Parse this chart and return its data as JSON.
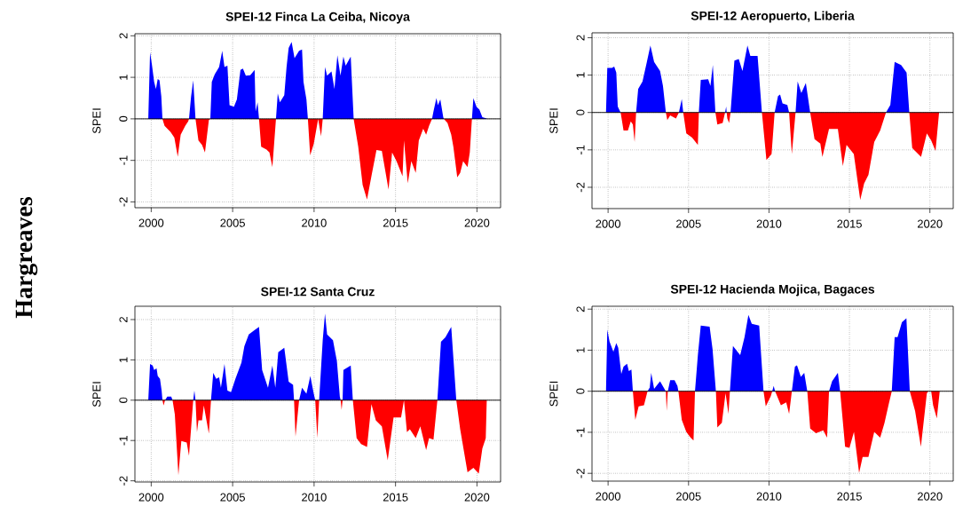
{
  "chart_data": [
    {
      "type": "area",
      "title": "SPEI-12 Finca La Ceiba, Nicoya",
      "ylabel": "SPEI",
      "xlim": [
        1999.0,
        2021.45
      ],
      "ylim": [
        -2.14,
        2.05
      ],
      "xticks": [
        2000,
        2005,
        2010,
        2015,
        2020
      ],
      "yticks": [
        -2,
        -1,
        0,
        1,
        2
      ],
      "grid": true,
      "ref_lines": [
        {
          "axis": "y",
          "value": 0,
          "color": "#000000"
        }
      ],
      "annotations": [
        "Hargreaves"
      ],
      "series": [
        {
          "color": "#0000ff",
          "x": [
            1999.82,
            1999.93,
            2000.04,
            2000.18,
            2000.29,
            2000.4,
            2000.51,
            2000.62,
            2000.69,
            2002.32,
            2002.45,
            2002.58,
            2002.72,
            2003.63,
            2003.72,
            2003.9,
            2004.17,
            2004.36,
            2004.5,
            2004.68,
            2004.81,
            2005.08,
            2005.26,
            2005.48,
            2005.63,
            2005.81,
            2006.08,
            2006.35,
            2006.41,
            2006.53,
            2006.62,
            2007.66,
            2007.77,
            2007.9,
            2008.17,
            2008.31,
            2008.44,
            2008.62,
            2008.8,
            2009.08,
            2009.26,
            2009.35,
            2009.53,
            2009.62,
            2010.25,
            2010.53,
            2010.67,
            2010.8,
            2011.07,
            2011.25,
            2011.43,
            2011.62,
            2011.8,
            2011.94,
            2012.25,
            2012.43,
            2017.24,
            2017.33,
            2017.51,
            2017.6,
            2017.75,
            2017.93,
            2017.97,
            2019.69,
            2019.78,
            2019.97,
            2020.15,
            2020.33,
            2020.6
          ],
          "values": [
            0,
            1.6,
            1.32,
            0.89,
            0.72,
            0.96,
            0.93,
            0.54,
            0,
            0,
            0.54,
            0.93,
            0,
            0,
            0.89,
            1.07,
            1.25,
            1.64,
            1.25,
            1.28,
            0.33,
            0.29,
            0.47,
            1.18,
            1.21,
            1.04,
            1.05,
            1.18,
            0.18,
            0.4,
            0,
            0,
            0.61,
            0.4,
            0.57,
            1.25,
            1.71,
            1.85,
            1.46,
            1.64,
            1.67,
            0.89,
            0.47,
            0,
            0,
            0,
            1.25,
            1.04,
            1.14,
            0.72,
            1.53,
            1.04,
            1.5,
            1.28,
            1.5,
            0,
            0,
            0.18,
            0.5,
            0.33,
            0.47,
            0.04,
            0,
            0,
            0.5,
            0.29,
            0.22,
            0.04,
            0.01
          ]
        },
        {
          "color": "#ff0000",
          "x": [
            2000.69,
            2000.82,
            2001.18,
            2001.42,
            2001.63,
            2001.81,
            2002.09,
            2002.27,
            2002.32,
            2002.72,
            2002.9,
            2003.12,
            2003.3,
            2003.54,
            2003.63,
            2006.62,
            2006.75,
            2007.08,
            2007.26,
            2007.44,
            2007.66,
            2009.62,
            2009.76,
            2009.98,
            2010.25,
            2010.43,
            2010.53,
            2012.43,
            2012.71,
            2012.98,
            2013.25,
            2013.52,
            2013.83,
            2014.16,
            2014.57,
            2014.79,
            2015.06,
            2015.43,
            2015.52,
            2015.75,
            2015.97,
            2016.24,
            2016.43,
            2016.7,
            2016.88,
            2017.06,
            2017.24,
            2017.97,
            2018.19,
            2018.42,
            2018.55,
            2018.79,
            2018.97,
            2019.15,
            2019.42,
            2019.56,
            2019.69
          ],
          "values": [
            0,
            -0.17,
            -0.31,
            -0.45,
            -0.91,
            -0.38,
            -0.17,
            -0.06,
            0,
            0,
            -0.52,
            -0.63,
            -0.81,
            -0.03,
            0,
            0,
            -0.67,
            -0.74,
            -0.81,
            -1.16,
            0,
            0,
            -0.88,
            -0.6,
            0,
            -0.42,
            0,
            0,
            -0.67,
            -1.59,
            -1.94,
            -1.38,
            -0.75,
            -0.77,
            -1.7,
            -0.81,
            -1.02,
            -1.38,
            -0.52,
            -1.55,
            -1.02,
            -1.3,
            -0.52,
            -0.24,
            -0.38,
            -0.17,
            0,
            0,
            -0.1,
            -0.38,
            -0.67,
            -1.41,
            -1.3,
            -1.02,
            -1.16,
            -0.81,
            0
          ]
        }
      ]
    },
    {
      "type": "area",
      "title": "SPEI-12 Aeropuerto, Liberia",
      "ylabel": "SPEI",
      "xlim": [
        1999.0,
        2021.45
      ],
      "ylim": [
        -2.57,
        2.13
      ],
      "xticks": [
        2000,
        2005,
        2010,
        2015,
        2020
      ],
      "yticks": [
        -2,
        -1,
        0,
        1,
        2
      ],
      "grid": true,
      "ref_lines": [
        {
          "axis": "y",
          "value": 0,
          "color": "#000000"
        }
      ],
      "series": [
        {
          "color": "#0000ff",
          "x": [
            1999.87,
            1999.95,
            2000.24,
            2000.38,
            2000.51,
            2000.6,
            2000.78,
            2001.74,
            2001.87,
            2002.14,
            2002.41,
            2002.63,
            2002.86,
            2003.23,
            2003.41,
            2003.59,
            2004.4,
            2004.58,
            2004.67,
            2005.64,
            2005.76,
            2006.22,
            2006.36,
            2006.51,
            2006.67,
            2007.27,
            2007.34,
            2007.37,
            2007.61,
            2007.85,
            2008.12,
            2008.35,
            2008.66,
            2008.84,
            2009.29,
            2009.56,
            2010.35,
            2010.56,
            2010.69,
            2010.84,
            2011.14,
            2011.25,
            2011.65,
            2011.78,
            2012.01,
            2012.29,
            2012.56,
            2017.27,
            2017.54,
            2017.81,
            2018.21,
            2018.55,
            2018.72
          ],
          "values": [
            0,
            1.19,
            1.19,
            1.23,
            1.07,
            0.16,
            0,
            0,
            0.63,
            0.83,
            1.35,
            1.79,
            1.35,
            1.11,
            0.71,
            0,
            0,
            0.36,
            0,
            0,
            0.87,
            0.89,
            0.71,
            1.27,
            0,
            0,
            0.16,
            0,
            0,
            1.39,
            1.43,
            1.11,
            1.79,
            1.51,
            1.51,
            0,
            0,
            0.44,
            0.48,
            0.24,
            0.2,
            0,
            0,
            0.83,
            0.52,
            0.79,
            0,
            0,
            0.2,
            1.35,
            1.27,
            1.07,
            0
          ]
        },
        {
          "color": "#ff0000",
          "x": [
            2000.78,
            2000.96,
            2001.23,
            2001.41,
            2001.54,
            2001.65,
            2001.74,
            2003.59,
            2003.68,
            2003.86,
            2004.22,
            2004.4,
            2004.67,
            2004.86,
            2005.22,
            2005.58,
            2005.64,
            2006.67,
            2006.79,
            2007.12,
            2007.27,
            2007.37,
            2007.41,
            2007.52,
            2007.61,
            2009.56,
            2009.84,
            2010.16,
            2010.35,
            2011.25,
            2011.42,
            2011.65,
            2012.56,
            2012.83,
            2013.19,
            2013.32,
            2013.73,
            2014.28,
            2014.59,
            2014.82,
            2015.27,
            2015.67,
            2015.91,
            2016.18,
            2016.54,
            2016.91,
            2017.27,
            2018.72,
            2018.9,
            2019.45,
            2019.81,
            2020.08,
            2020.35,
            2020.57
          ],
          "values": [
            0,
            -0.48,
            -0.48,
            -0.24,
            -0.32,
            -0.79,
            0,
            0,
            -0.2,
            -0.08,
            -0.16,
            0,
            0,
            -0.56,
            -0.67,
            -0.87,
            0,
            0,
            -0.32,
            -0.28,
            0,
            0,
            -0.16,
            -0.28,
            0,
            0,
            -1.27,
            -1.11,
            0,
            0,
            -1.11,
            0,
            0,
            -0.71,
            -0.83,
            -1.19,
            -0.44,
            -0.44,
            -1.43,
            -0.87,
            -1.11,
            -2.34,
            -1.9,
            -1.67,
            -0.79,
            -0.48,
            0,
            0,
            -0.95,
            -1.19,
            -0.56,
            -0.75,
            -1.03,
            0
          ]
        }
      ]
    },
    {
      "type": "area",
      "title": "SPEI-12 Santa Cruz",
      "ylabel": "SPEI",
      "xlim": [
        1999.0,
        2021.45
      ],
      "ylim": [
        -2.03,
        2.33
      ],
      "xticks": [
        2000,
        2005,
        2010,
        2015,
        2020
      ],
      "yticks": [
        -2,
        -1,
        0,
        1,
        2
      ],
      "grid": true,
      "ref_lines": [
        {
          "axis": "y",
          "value": 0,
          "color": "#000000"
        }
      ],
      "series": [
        {
          "color": "#0000ff",
          "x": [
            1999.82,
            1999.93,
            2000.09,
            2000.18,
            2000.33,
            2000.4,
            2000.54,
            2000.64,
            2000.69,
            2000.85,
            2000.99,
            2001.23,
            2001.31,
            2002.58,
            2002.65,
            2002.72,
            2003.67,
            2003.81,
            2003.99,
            2004.17,
            2004.28,
            2004.5,
            2004.68,
            2004.9,
            2005.17,
            2005.54,
            2005.72,
            2005.99,
            2006.35,
            2006.62,
            2006.81,
            2007.17,
            2007.44,
            2007.62,
            2007.8,
            2008.17,
            2008.44,
            2008.71,
            2008.77,
            2009.08,
            2009.26,
            2009.53,
            2009.77,
            2009.98,
            2010.07,
            2010.31,
            2010.53,
            2010.67,
            2010.8,
            2011.16,
            2011.4,
            2011.58,
            2011.63,
            2011.75,
            2011.8,
            2012.25,
            2012.38,
            2017.57,
            2017.79,
            2018.06,
            2018.42,
            2018.73
          ],
          "values": [
            0,
            0.9,
            0.86,
            0.75,
            0.79,
            0.6,
            0.53,
            0.24,
            0,
            0,
            0.09,
            0.09,
            0,
            0,
            0.24,
            0,
            0,
            0.68,
            0.53,
            0.57,
            0.31,
            0.9,
            0.24,
            0.2,
            0.53,
            0.93,
            1.34,
            1.63,
            1.74,
            1.82,
            0.75,
            0.31,
            0.86,
            0.31,
            1.19,
            1.3,
            0.46,
            0.38,
            0,
            0,
            0.31,
            0.16,
            0.6,
            0.16,
            0,
            0,
            1.49,
            2.15,
            1.63,
            1.49,
            0.97,
            0.09,
            0,
            0,
            0.75,
            0.86,
            0,
            0,
            1.45,
            1.56,
            1.82,
            0
          ]
        },
        {
          "color": "#ff0000",
          "x": [
            2000.69,
            2000.76,
            2000.85,
            2001.31,
            2001.45,
            2001.67,
            2001.85,
            2002.18,
            2002.32,
            2002.58,
            2002.72,
            2002.81,
            2002.9,
            2003.12,
            2003.23,
            2003.54,
            2003.67,
            2008.77,
            2008.86,
            2009.08,
            2010.07,
            2010.2,
            2010.31,
            2011.63,
            2011.69,
            2011.75,
            2012.38,
            2012.61,
            2012.89,
            2013.25,
            2013.52,
            2013.79,
            2014.16,
            2014.52,
            2014.88,
            2015.34,
            2015.52,
            2015.7,
            2015.88,
            2016.24,
            2016.52,
            2016.88,
            2017.06,
            2017.33,
            2017.57,
            2018.73,
            2018.97,
            2019.42,
            2019.78,
            2020.11,
            2020.33,
            2020.54,
            2020.6
          ],
          "values": [
            0,
            -0.13,
            0,
            0,
            -0.35,
            -1.86,
            -1.01,
            -1.05,
            -1.38,
            0,
            0,
            -0.79,
            -0.5,
            -0.5,
            -0.13,
            -0.83,
            0,
            0,
            -0.9,
            0,
            0,
            -0.94,
            0,
            0,
            -0.24,
            0,
            0,
            -0.94,
            -1.09,
            -1.16,
            -0.1,
            -0.5,
            -0.65,
            -1.49,
            -0.43,
            -0.43,
            0,
            -0.79,
            -0.72,
            -0.94,
            -0.65,
            -1.24,
            -0.94,
            -0.98,
            0,
            0,
            -0.72,
            -1.79,
            -1.68,
            -1.82,
            -1.2,
            -0.94,
            0
          ]
        }
      ]
    },
    {
      "type": "area",
      "title": "SPEI-12 Hacienda Mojica, Bagaces",
      "ylabel": "SPEI",
      "xlim": [
        1999.0,
        2021.45
      ],
      "ylim": [
        -2.19,
        2.07
      ],
      "xticks": [
        2000,
        2005,
        2010,
        2015,
        2020
      ],
      "yticks": [
        -2,
        -1,
        0,
        1,
        2
      ],
      "grid": true,
      "ref_lines": [
        {
          "axis": "y",
          "value": 0,
          "color": "#000000"
        }
      ],
      "series": [
        {
          "color": "#0000ff",
          "x": [
            1999.87,
            1999.95,
            2000.09,
            2000.33,
            2000.51,
            2000.63,
            2000.82,
            2000.96,
            2001.18,
            2001.29,
            2001.45,
            2001.54,
            2002.45,
            2002.59,
            2002.68,
            2002.86,
            2003.23,
            2003.5,
            2003.59,
            2003.71,
            2003.86,
            2004.13,
            2004.31,
            2004.37,
            2005.4,
            2005.58,
            2005.76,
            2006.31,
            2006.49,
            2006.7,
            2007.57,
            2007.76,
            2008.21,
            2008.48,
            2008.72,
            2008.93,
            2009.39,
            2009.66,
            2010.2,
            2010.29,
            2010.38,
            2011.42,
            2011.61,
            2011.74,
            2011.98,
            2012.19,
            2012.38,
            2013.73,
            2013.92,
            2014.28,
            2014.42,
            2017.63,
            2017.81,
            2017.99,
            2018.26,
            2018.54,
            2018.75
          ],
          "values": [
            0,
            1.5,
            1.21,
            0.96,
            1.17,
            1.06,
            0.42,
            0.6,
            0.67,
            0.49,
            0.53,
            0,
            0,
            0.09,
            0.45,
            0.06,
            0.24,
            0.06,
            0,
            0,
            0.27,
            0.27,
            0.13,
            0,
            0,
            0.88,
            1.6,
            1.57,
            1.03,
            0,
            0,
            1.1,
            0.88,
            1.32,
            1.86,
            1.64,
            1.6,
            0,
            0,
            0.13,
            0,
            0,
            0.6,
            0.63,
            0.35,
            0.45,
            0,
            0,
            0.24,
            0.45,
            0,
            0,
            1.32,
            1.32,
            1.68,
            1.78,
            0
          ]
        },
        {
          "color": "#ff0000",
          "x": [
            2001.54,
            2001.69,
            2001.9,
            2002.23,
            2002.45,
            2003.59,
            2003.64,
            2003.71,
            2004.37,
            2004.58,
            2004.86,
            2005.13,
            2005.31,
            2005.4,
            2006.7,
            2006.79,
            2007.07,
            2007.3,
            2007.48,
            2007.57,
            2009.66,
            2009.8,
            2010.11,
            2010.2,
            2010.38,
            2010.74,
            2011.07,
            2011.25,
            2011.42,
            2012.38,
            2012.56,
            2012.92,
            2013.37,
            2013.61,
            2013.73,
            2014.42,
            2014.73,
            2015.0,
            2015.28,
            2015.6,
            2015.82,
            2016.18,
            2016.54,
            2016.91,
            2017.18,
            2017.45,
            2017.63,
            2018.75,
            2019.08,
            2019.44,
            2019.81,
            2019.9,
            2020.08,
            2020.2,
            2020.43,
            2020.61
          ],
          "values": [
            0,
            -0.7,
            -0.37,
            -0.34,
            0,
            0,
            -0.48,
            0,
            0,
            -0.7,
            -0.99,
            -1.13,
            -1.2,
            0,
            0,
            -0.88,
            -0.77,
            -0.05,
            -0.55,
            0,
            0,
            -0.37,
            -0.12,
            0,
            0,
            -0.34,
            -0.27,
            -0.55,
            0,
            0,
            -0.91,
            -1.02,
            -0.95,
            -1.13,
            0,
            0,
            -1.35,
            -1.38,
            -0.99,
            -1.99,
            -1.6,
            -1.6,
            -0.99,
            -1.13,
            -0.77,
            -0.3,
            0,
            0,
            -0.48,
            -1.35,
            -0.05,
            0,
            0,
            -0.34,
            -0.66,
            0
          ]
        }
      ]
    }
  ]
}
